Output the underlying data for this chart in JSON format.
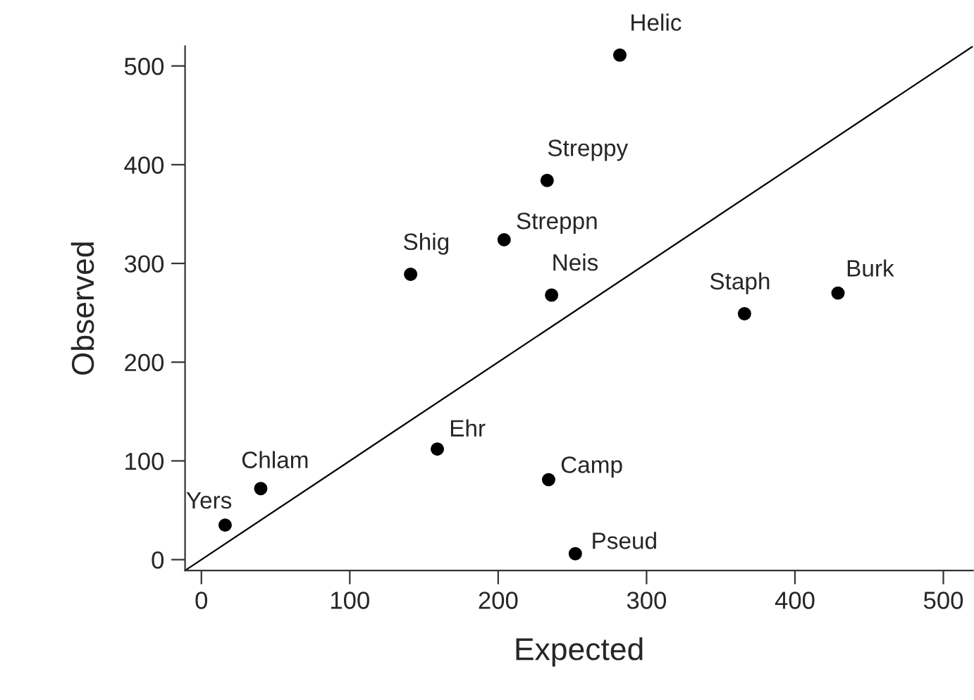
{
  "chart_data": {
    "type": "scatter",
    "xlabel": "Expected",
    "ylabel": "Observed",
    "xlim": [
      -11,
      520
    ],
    "ylim": [
      -11,
      520
    ],
    "xticks": [
      0,
      100,
      200,
      300,
      400,
      500
    ],
    "yticks": [
      0,
      100,
      200,
      300,
      400,
      500
    ],
    "grid": false,
    "marker": "circle",
    "series": [
      {
        "color": "#000000",
        "x": [
          282,
          233,
          204,
          141,
          236,
          366,
          429,
          159,
          234,
          252,
          40,
          16
        ],
        "values": [
          511,
          384,
          324,
          289,
          268,
          249,
          270,
          112,
          81,
          6,
          72,
          35
        ]
      },
      {
        "type": "line",
        "color": "#000000",
        "line_style": "solid",
        "marker": "none",
        "x": [
          -11,
          520
        ],
        "values": [
          -11,
          520
        ]
      }
    ],
    "annotations": [
      {
        "text": "Helic",
        "x": 282,
        "y": 511
      },
      {
        "text": "Streppy",
        "x": 233,
        "y": 384
      },
      {
        "text": "Streppn",
        "x": 204,
        "y": 324
      },
      {
        "text": "Shig",
        "x": 141,
        "y": 289
      },
      {
        "text": "Neis",
        "x": 236,
        "y": 268
      },
      {
        "text": "Staph",
        "x": 366,
        "y": 249
      },
      {
        "text": "Burk",
        "x": 429,
        "y": 270
      },
      {
        "text": "Ehr",
        "x": 159,
        "y": 112
      },
      {
        "text": "Camp",
        "x": 234,
        "y": 81
      },
      {
        "text": "Pseud",
        "x": 252,
        "y": 6
      },
      {
        "text": "Chlam",
        "x": 40,
        "y": 72
      },
      {
        "text": "Yers",
        "x": 16,
        "y": 35
      }
    ]
  }
}
